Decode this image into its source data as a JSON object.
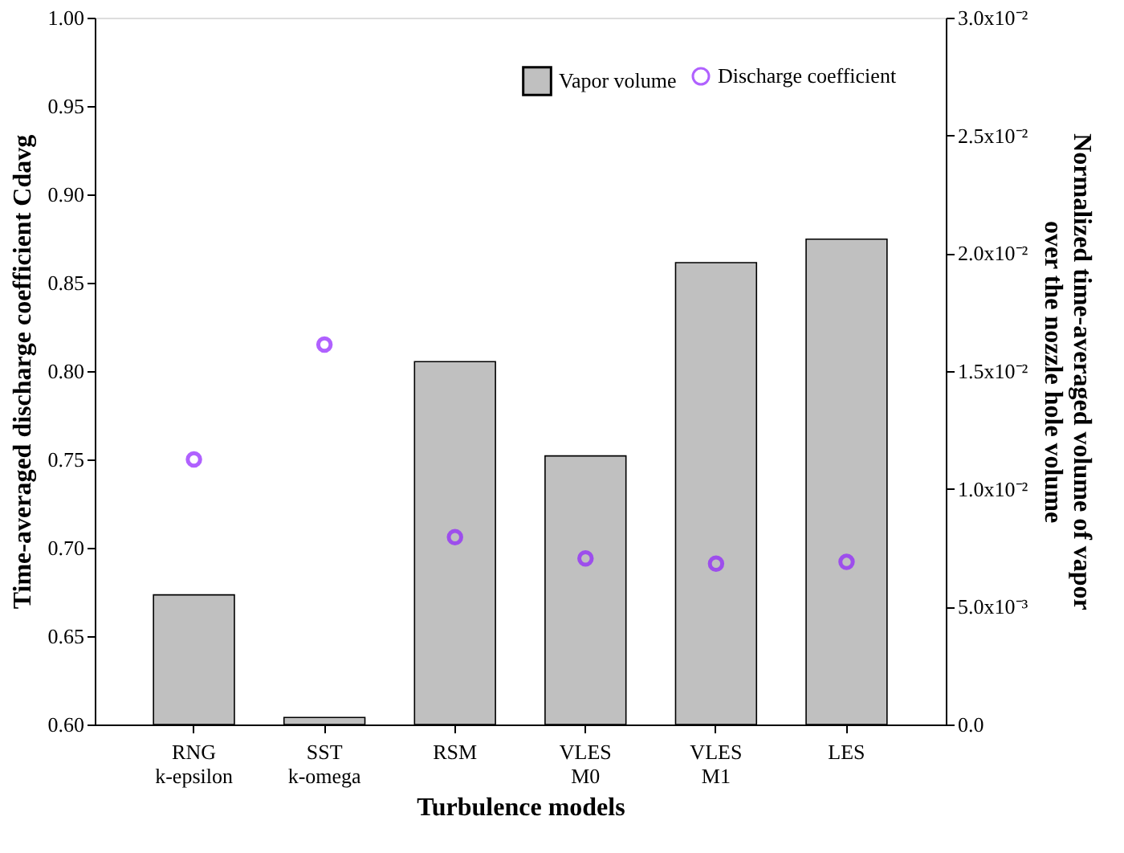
{
  "chart_data": {
    "type": "bar",
    "categories": [
      "RNG\nk-epsilon",
      "SST\nk-omega",
      "RSM",
      "VLES\nM0",
      "VLES\nM1",
      "LES"
    ],
    "xlabel": "Turbulence models",
    "ylabel": "Time-averaged discharge coefficient Cdavg",
    "y2label": "Normalized time-averaged volume of vapor\nover the nozzle hole volume",
    "series": [
      {
        "name": "Discharge coefficient",
        "type": "scatter",
        "color": "#8f1fff",
        "axis": "y",
        "values": [
          0.75,
          0.815,
          0.706,
          0.694,
          0.691,
          0.692
        ]
      },
      {
        "name": "Vapor volume",
        "color": "#c0c0c0",
        "axis": "y2",
        "values": [
          0.0055,
          0.0003,
          0.0154,
          0.0114,
          0.0196,
          0.0206
        ]
      }
    ],
    "ylim": [
      0.6,
      1.0
    ],
    "yticks": [
      {
        "value": 0.6,
        "label": "0.60"
      },
      {
        "value": 0.65,
        "label": "0.65"
      },
      {
        "value": 0.7,
        "label": "0.70"
      },
      {
        "value": 0.75,
        "label": "0.75"
      },
      {
        "value": 0.8,
        "label": "0.80"
      },
      {
        "value": 0.85,
        "label": "0.85"
      },
      {
        "value": 0.9,
        "label": "0.90"
      },
      {
        "value": 0.95,
        "label": "0.95"
      },
      {
        "value": 1.0,
        "label": "1.00"
      }
    ],
    "y2lim": [
      0,
      0.03
    ],
    "y2ticks": [
      {
        "value": 0,
        "label": "0.0"
      },
      {
        "value": 0.005,
        "label": "5.0x10⁻³"
      },
      {
        "value": 0.01,
        "label": "1.0x10⁻²"
      },
      {
        "value": 0.015,
        "label": "1.5x10⁻²"
      },
      {
        "value": 0.02,
        "label": "2.0x10⁻²"
      },
      {
        "value": 0.025,
        "label": "2.5x10⁻²"
      },
      {
        "value": 0.03,
        "label": "3.0x10⁻²"
      }
    ],
    "legend": "top right",
    "grid": false,
    "marker": "circle"
  }
}
